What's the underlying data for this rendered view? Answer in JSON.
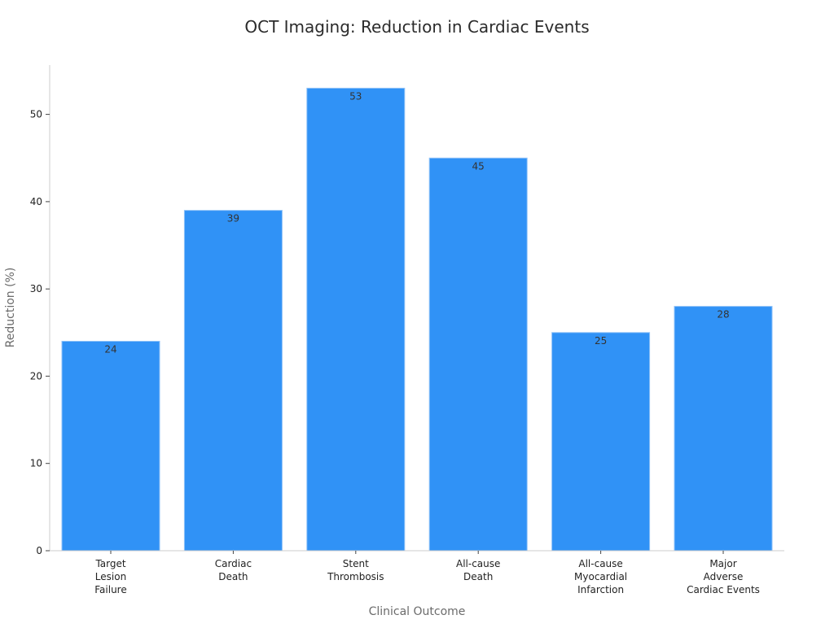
{
  "chart_data": {
    "type": "bar",
    "title": "OCT Imaging: Reduction in Cardiac Events",
    "xlabel": "Clinical Outcome",
    "ylabel": "Reduction (%)",
    "categories": [
      [
        "Target",
        "Lesion",
        "Failure"
      ],
      [
        "Cardiac",
        "Death"
      ],
      [
        "Stent",
        "Thrombosis"
      ],
      [
        "All-cause",
        "Death"
      ],
      [
        "All-cause",
        "Myocardial",
        "Infarction"
      ],
      [
        "Major",
        "Adverse",
        "Cardiac Events"
      ]
    ],
    "values": [
      24,
      39,
      53,
      45,
      25,
      28
    ],
    "value_labels": [
      "24",
      "39",
      "53",
      "45",
      "25",
      "28"
    ],
    "ylim": [
      0,
      55.65
    ],
    "yticks": [
      0,
      10,
      20,
      30,
      40,
      50
    ],
    "ytick_labels": [
      "0",
      "10",
      "20",
      "30",
      "40",
      "50"
    ],
    "grid": false,
    "bar_color": "#3092f6",
    "axis_color": "#cccccc"
  }
}
